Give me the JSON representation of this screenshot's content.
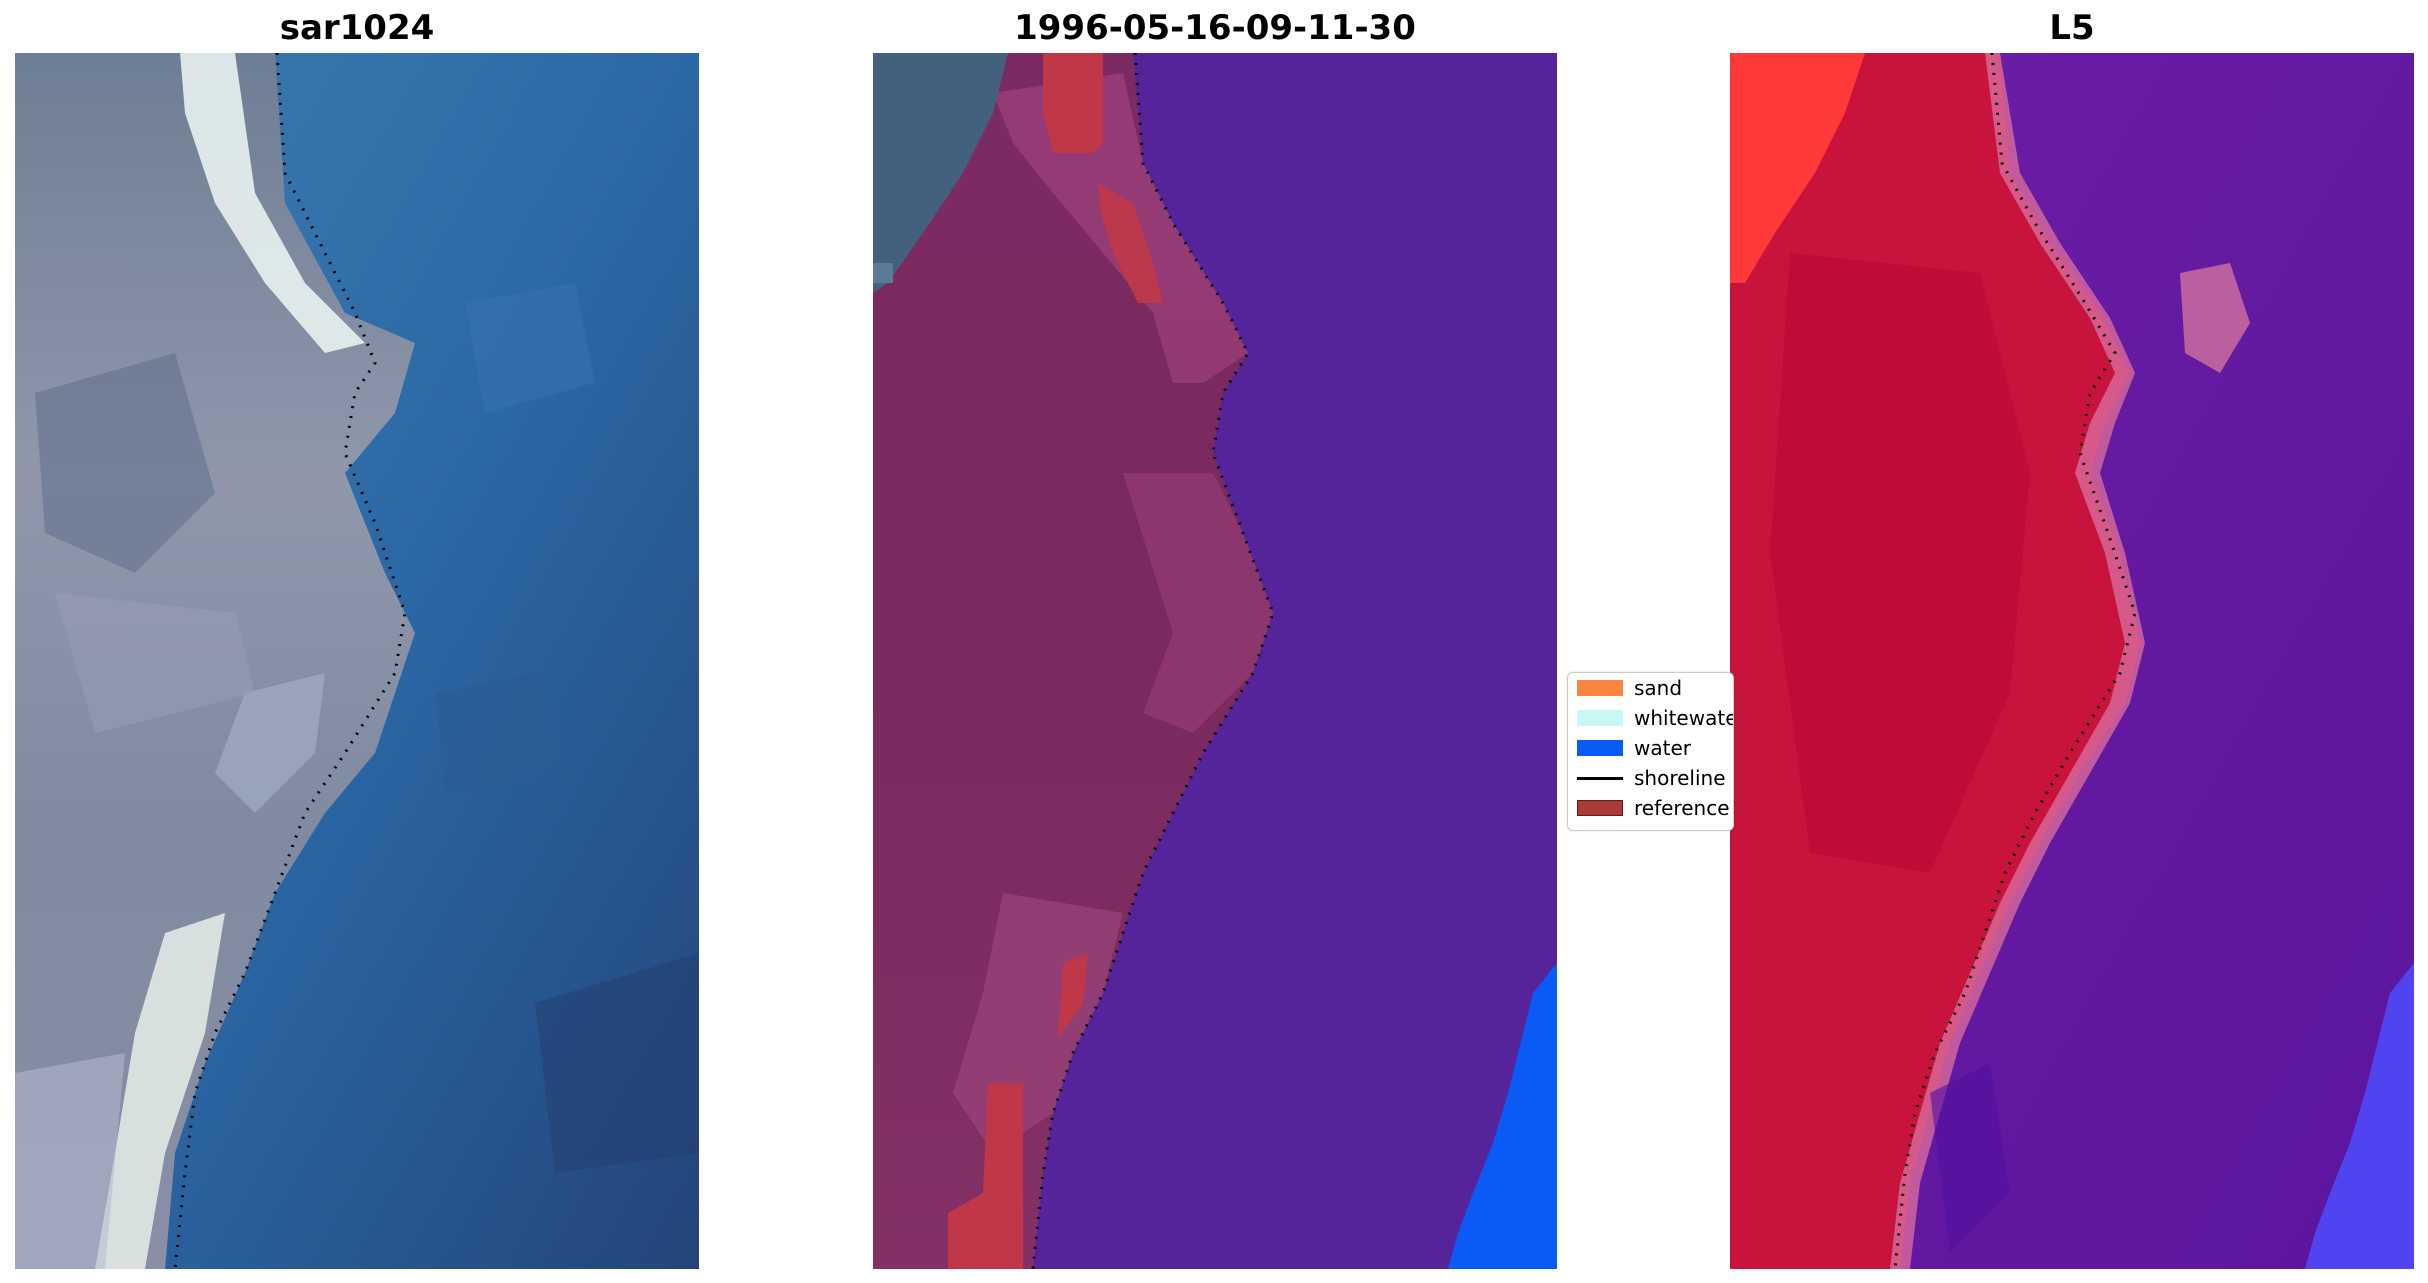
{
  "panels": [
    {
      "title": "sar1024"
    },
    {
      "title": "1996-05-16-09-11-30"
    },
    {
      "title": "L5"
    }
  ],
  "legend": {
    "items": [
      {
        "label": "sand",
        "color": "#f7863c",
        "kind": "swatch"
      },
      {
        "label": "whitewater",
        "color": "#c8f7f7",
        "kind": "swatch"
      },
      {
        "label": "water",
        "color": "#0a5af5",
        "kind": "swatch"
      },
      {
        "label": "shoreline",
        "color": "#000000",
        "kind": "line"
      },
      {
        "label": "reference",
        "color": "#a83a3a",
        "kind": "swatch"
      }
    ]
  },
  "colors": {
    "water_blue": "#2f6ea8",
    "classified_water": "#56249a",
    "land_mauve": "#7e2a60",
    "l5_land": "#c8143c",
    "l5_water": "#6a1aa8"
  }
}
